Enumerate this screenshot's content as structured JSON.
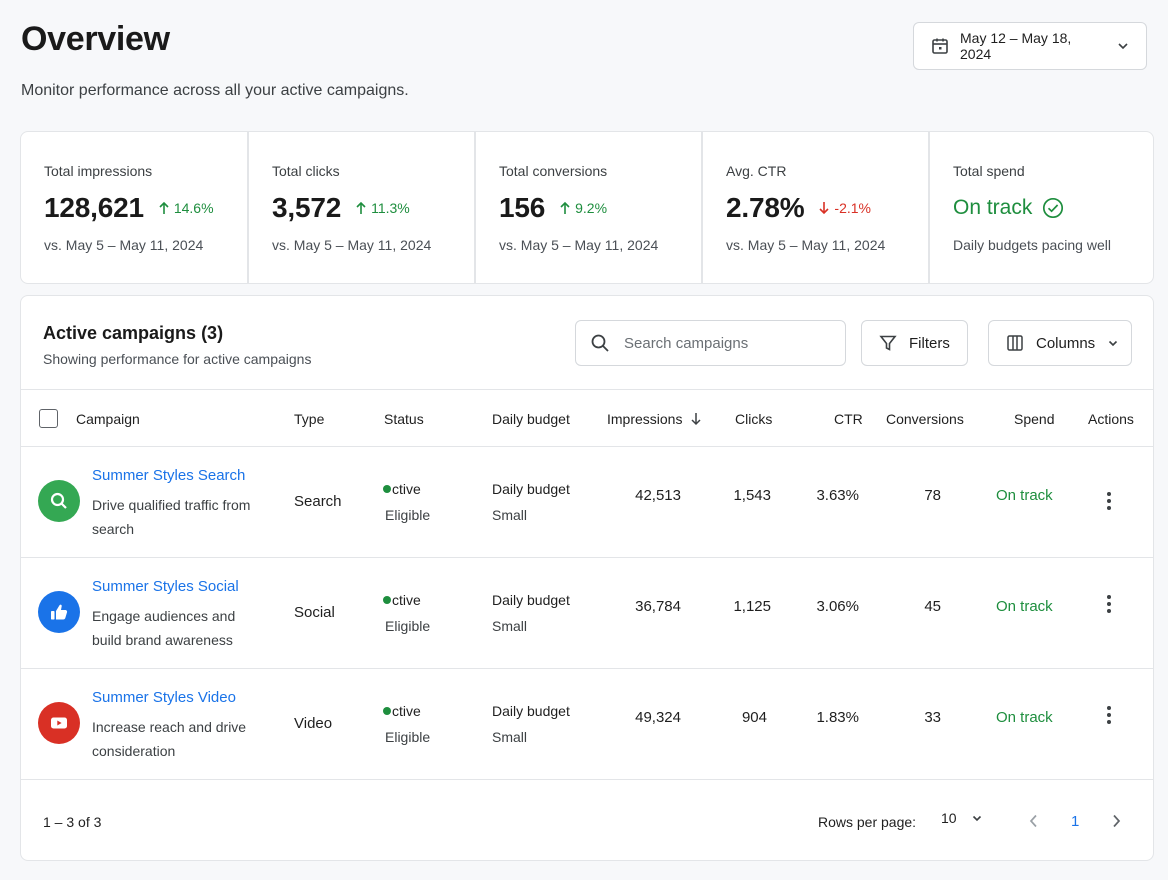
{
  "header": {
    "title": "Overview",
    "subtitle": "Monitor performance across all your active campaigns.",
    "date_range": "May 12 – May 18, 2024"
  },
  "kpis": [
    {
      "label": "Total impressions",
      "value": "128,621",
      "delta": "14.6%",
      "direction": "up",
      "compare": "vs. May 5 – May 11, 2024"
    },
    {
      "label": "Total clicks",
      "value": "3,572",
      "delta": "11.3%",
      "direction": "up",
      "compare": "vs. May 5 – May 11, 2024"
    },
    {
      "label": "Total conversions",
      "value": "156",
      "delta": "9.2%",
      "direction": "up",
      "compare": "vs. May 5 – May 11, 2024"
    },
    {
      "label": "Avg. CTR",
      "value": "2.78%",
      "delta": "-2.1%",
      "direction": "down",
      "compare": "vs. May 5 – May 11, 2024"
    },
    {
      "label": "Total spend",
      "status": "On track",
      "note": "Daily budgets pacing well"
    }
  ],
  "campaigns_table": {
    "title": "Active campaigns (3)",
    "subtitle": "Showing performance for active campaigns",
    "search_placeholder": "Search campaigns",
    "filters_label": "Filters",
    "columns_label": "Columns",
    "headers": {
      "campaign": "Campaign",
      "type": "Type",
      "status": "Status",
      "daily_budget": "Daily budget",
      "impressions": "Impressions",
      "clicks": "Clicks",
      "ctr": "CTR",
      "conversions": "Conversions",
      "spend": "Spend",
      "actions": "Actions"
    },
    "rows": [
      {
        "name": "Summer Styles Search",
        "desc": "Drive qualified traffic from search",
        "type": "Search",
        "status": "ctive",
        "eligibility": "Eligible",
        "budget_label": "Daily budget",
        "budget_size": "Small",
        "impressions": "42,513",
        "clicks": "1,543",
        "ctr": "3.63%",
        "conversions": "78",
        "spend": "On track",
        "icon": "search-icon",
        "color": "#34a853"
      },
      {
        "name": "Summer Styles Social",
        "desc": "Engage audiences and build brand awareness",
        "type": "Social",
        "status": "ctive",
        "eligibility": "Eligible",
        "budget_label": "Daily budget",
        "budget_size": "Small",
        "impressions": "36,784",
        "clicks": "1,125",
        "ctr": "3.06%",
        "conversions": "45",
        "spend": "On track",
        "icon": "thumbs-up-icon",
        "color": "#1a73e8"
      },
      {
        "name": "Summer Styles Video",
        "desc": "Increase reach and drive consideration",
        "type": "Video",
        "status": "ctive",
        "eligibility": "Eligible",
        "budget_label": "Daily budget",
        "budget_size": "Small",
        "impressions": "49,324",
        "clicks": "904",
        "ctr": "1.83%",
        "conversions": "33",
        "spend": "On track",
        "icon": "video-play-icon",
        "color": "#d93025"
      }
    ],
    "footer": {
      "range": "1 – 3 of 3",
      "rows_per_page_label": "Rows per page:",
      "rows_per_page": "10",
      "current_page": "1"
    }
  },
  "colors": {
    "accent": "#1a73e8",
    "positive": "#1e8e3e",
    "negative": "#d93025"
  }
}
